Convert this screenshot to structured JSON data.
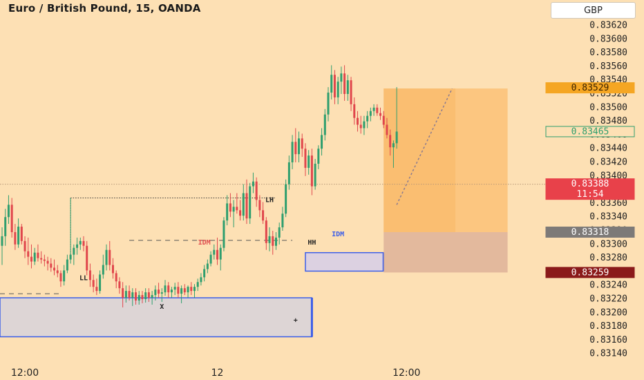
{
  "header": {
    "title": "Euro / British Pound, 15, OANDA",
    "currency_button": "GBP"
  },
  "chart_data": {
    "type": "candlestick",
    "y_ticks": [
      0.8314,
      0.8316,
      0.8318,
      0.832,
      0.8322,
      0.8324,
      0.8326,
      0.8328,
      0.833,
      0.8332,
      0.8334,
      0.8336,
      0.8338,
      0.834,
      0.8342,
      0.8344,
      0.8346,
      0.8348,
      0.835,
      0.8352,
      0.8354,
      0.8356,
      0.8358,
      0.836,
      0.8362
    ],
    "y_tick_labels": [
      "0.83140",
      "0.83160",
      "0.83180",
      "0.83200",
      "0.83220",
      "0.83240",
      "0.83260",
      "0.83280",
      "0.83300",
      "0.83320",
      "0.83340",
      "0.83360",
      "0.83380",
      "0.83400",
      "0.83420",
      "0.83440",
      "0.83460",
      "0.83480",
      "0.83500",
      "0.83520",
      "0.83540",
      "0.83560",
      "0.83580",
      "0.83600",
      "0.83620"
    ],
    "x_tick_labels": [
      {
        "label": "12:00",
        "bar": 7
      },
      {
        "label": "12",
        "bar": 66
      },
      {
        "label": "12:00",
        "bar": 124
      }
    ],
    "colors": {
      "up": "#2e9e6e",
      "down": "#e0464c"
    },
    "candles": [
      [
        0.83298,
        0.83325,
        0.8327,
        0.83312
      ],
      [
        0.83312,
        0.83352,
        0.83298,
        0.8334
      ],
      [
        0.8334,
        0.83372,
        0.8333,
        0.83358
      ],
      [
        0.83358,
        0.83368,
        0.8331,
        0.83318
      ],
      [
        0.83318,
        0.8333,
        0.83292,
        0.833
      ],
      [
        0.833,
        0.83338,
        0.83295,
        0.83326
      ],
      [
        0.83326,
        0.8333,
        0.833,
        0.83305
      ],
      [
        0.83305,
        0.83312,
        0.8328,
        0.8329
      ],
      [
        0.8329,
        0.8331,
        0.8327,
        0.83282
      ],
      [
        0.83282,
        0.833,
        0.83265,
        0.83275
      ],
      [
        0.83275,
        0.83295,
        0.8327,
        0.83288
      ],
      [
        0.83288,
        0.833,
        0.83275,
        0.8328
      ],
      [
        0.8328,
        0.8329,
        0.83272,
        0.83278
      ],
      [
        0.83278,
        0.83285,
        0.83268,
        0.83276
      ],
      [
        0.83276,
        0.83282,
        0.83262,
        0.83272
      ],
      [
        0.83272,
        0.8328,
        0.8326,
        0.83266
      ],
      [
        0.83266,
        0.83278,
        0.83255,
        0.83262
      ],
      [
        0.83262,
        0.8327,
        0.83252,
        0.83258
      ],
      [
        0.83258,
        0.83262,
        0.83238,
        0.83246
      ],
      [
        0.83246,
        0.8327,
        0.8324,
        0.83262
      ],
      [
        0.83262,
        0.83285,
        0.83258,
        0.83278
      ],
      [
        0.83278,
        0.83368,
        0.83272,
        0.83285
      ],
      [
        0.83285,
        0.833,
        0.8327,
        0.83295
      ],
      [
        0.83295,
        0.8331,
        0.83285,
        0.833
      ],
      [
        0.833,
        0.8331,
        0.83292,
        0.83305
      ],
      [
        0.83305,
        0.83312,
        0.8329,
        0.83298
      ],
      [
        0.83298,
        0.83305,
        0.83255,
        0.83262
      ],
      [
        0.83262,
        0.83272,
        0.83238,
        0.83248
      ],
      [
        0.83248,
        0.83256,
        0.8323,
        0.83238
      ],
      [
        0.83238,
        0.8325,
        0.83226,
        0.83232
      ],
      [
        0.83232,
        0.83262,
        0.83228,
        0.83256
      ],
      [
        0.83256,
        0.83285,
        0.8325,
        0.8327
      ],
      [
        0.8327,
        0.833,
        0.83262,
        0.83292
      ],
      [
        0.83292,
        0.83305,
        0.83262,
        0.8327
      ],
      [
        0.8327,
        0.8328,
        0.8325,
        0.83258
      ],
      [
        0.83258,
        0.83262,
        0.83236,
        0.83246
      ],
      [
        0.83246,
        0.83252,
        0.83228,
        0.83236
      ],
      [
        0.83236,
        0.83245,
        0.83208,
        0.83222
      ],
      [
        0.83222,
        0.8324,
        0.83215,
        0.83232
      ],
      [
        0.83232,
        0.8324,
        0.83218,
        0.83222
      ],
      [
        0.83222,
        0.83236,
        0.8321,
        0.8323
      ],
      [
        0.8323,
        0.83236,
        0.83212,
        0.83218
      ],
      [
        0.83218,
        0.83232,
        0.83212,
        0.83226
      ],
      [
        0.83226,
        0.83232,
        0.83214,
        0.8322
      ],
      [
        0.8322,
        0.83236,
        0.83215,
        0.8323
      ],
      [
        0.8323,
        0.83236,
        0.83216,
        0.83222
      ],
      [
        0.83222,
        0.83232,
        0.83212,
        0.83226
      ],
      [
        0.83226,
        0.8324,
        0.83218,
        0.83234
      ],
      [
        0.83234,
        0.83244,
        0.83222,
        0.83228
      ],
      [
        0.83228,
        0.83236,
        0.83216,
        0.8323
      ],
      [
        0.8323,
        0.83248,
        0.83225,
        0.8324
      ],
      [
        0.8324,
        0.83245,
        0.83222,
        0.8323
      ],
      [
        0.8323,
        0.83238,
        0.83222,
        0.83234
      ],
      [
        0.83234,
        0.83244,
        0.83226,
        0.83238
      ],
      [
        0.83238,
        0.83245,
        0.83222,
        0.83228
      ],
      [
        0.83228,
        0.8324,
        0.83214,
        0.83236
      ],
      [
        0.83236,
        0.83242,
        0.83226,
        0.8323
      ],
      [
        0.8323,
        0.8324,
        0.83222,
        0.83238
      ],
      [
        0.83238,
        0.83245,
        0.83226,
        0.83232
      ],
      [
        0.83232,
        0.83242,
        0.83222,
        0.83238
      ],
      [
        0.83238,
        0.8325,
        0.83232,
        0.83245
      ],
      [
        0.83245,
        0.83258,
        0.8324,
        0.83252
      ],
      [
        0.83252,
        0.8327,
        0.83246,
        0.83264
      ],
      [
        0.83264,
        0.83278,
        0.83258,
        0.83272
      ],
      [
        0.83272,
        0.8329,
        0.83268,
        0.83285
      ],
      [
        0.83285,
        0.833,
        0.83278,
        0.83292
      ],
      [
        0.83292,
        0.8331,
        0.8327,
        0.83278
      ],
      [
        0.83278,
        0.833,
        0.83262,
        0.83295
      ],
      [
        0.83295,
        0.8334,
        0.8329,
        0.83335
      ],
      [
        0.83335,
        0.83372,
        0.83328,
        0.8336
      ],
      [
        0.8336,
        0.83375,
        0.8334,
        0.83348
      ],
      [
        0.83348,
        0.83365,
        0.83325,
        0.83355
      ],
      [
        0.83355,
        0.83375,
        0.83345,
        0.8335
      ],
      [
        0.8335,
        0.83365,
        0.83335,
        0.83342
      ],
      [
        0.83342,
        0.83388,
        0.83335,
        0.83375
      ],
      [
        0.83375,
        0.83395,
        0.8333,
        0.83338
      ],
      [
        0.83338,
        0.8339,
        0.8333,
        0.83385
      ],
      [
        0.83385,
        0.83405,
        0.83375,
        0.83392
      ],
      [
        0.83392,
        0.83398,
        0.83355,
        0.83365
      ],
      [
        0.83365,
        0.83372,
        0.8334,
        0.8335
      ],
      [
        0.8335,
        0.83362,
        0.8333,
        0.83335
      ],
      [
        0.83335,
        0.8334,
        0.83292,
        0.83302
      ],
      [
        0.83302,
        0.83325,
        0.8329,
        0.83312
      ],
      [
        0.83312,
        0.8332,
        0.83285,
        0.83298
      ],
      [
        0.83298,
        0.83318,
        0.83292,
        0.8331
      ],
      [
        0.8331,
        0.83332,
        0.833,
        0.83325
      ],
      [
        0.83325,
        0.83355,
        0.8332,
        0.83345
      ],
      [
        0.83345,
        0.83395,
        0.8334,
        0.83388
      ],
      [
        0.83388,
        0.8343,
        0.8338,
        0.8342
      ],
      [
        0.8342,
        0.8346,
        0.8341,
        0.8345
      ],
      [
        0.8345,
        0.8347,
        0.8342,
        0.83432
      ],
      [
        0.83432,
        0.83465,
        0.8342,
        0.83455
      ],
      [
        0.83455,
        0.83462,
        0.83428,
        0.8344
      ],
      [
        0.8344,
        0.83448,
        0.834,
        0.83412
      ],
      [
        0.83412,
        0.83438,
        0.83402,
        0.8343
      ],
      [
        0.8343,
        0.8344,
        0.83372,
        0.83385
      ],
      [
        0.83385,
        0.83425,
        0.8338,
        0.83418
      ],
      [
        0.83418,
        0.83445,
        0.8341,
        0.8344
      ],
      [
        0.8344,
        0.8347,
        0.8343,
        0.8346
      ],
      [
        0.8346,
        0.83498,
        0.83452,
        0.8349
      ],
      [
        0.8349,
        0.8353,
        0.8348,
        0.83522
      ],
      [
        0.83522,
        0.83562,
        0.83512,
        0.83548
      ],
      [
        0.83548,
        0.83555,
        0.83505,
        0.83515
      ],
      [
        0.83515,
        0.83545,
        0.83505,
        0.83538
      ],
      [
        0.83538,
        0.8356,
        0.8352,
        0.8355
      ],
      [
        0.8355,
        0.83562,
        0.8351,
        0.8352
      ],
      [
        0.8352,
        0.83548,
        0.8351,
        0.8354
      ],
      [
        0.8354,
        0.83545,
        0.83495,
        0.83505
      ],
      [
        0.83505,
        0.83515,
        0.83475,
        0.83485
      ],
      [
        0.83485,
        0.83495,
        0.83465,
        0.83475
      ],
      [
        0.83475,
        0.83488,
        0.83462,
        0.8347
      ],
      [
        0.8347,
        0.83488,
        0.8346,
        0.8348
      ],
      [
        0.8348,
        0.83495,
        0.8347,
        0.83488
      ],
      [
        0.83488,
        0.835,
        0.8348,
        0.83495
      ],
      [
        0.83495,
        0.83505,
        0.83488,
        0.835
      ],
      [
        0.835,
        0.83505,
        0.83488,
        0.83492
      ],
      [
        0.83492,
        0.835,
        0.83482,
        0.83488
      ],
      [
        0.83488,
        0.83495,
        0.8347,
        0.83475
      ],
      [
        0.83475,
        0.83485,
        0.83455,
        0.8346
      ],
      [
        0.8346,
        0.83468,
        0.8343,
        0.83442
      ],
      [
        0.83442,
        0.83452,
        0.83412,
        0.83448
      ],
      [
        0.83448,
        0.8353,
        0.8344,
        0.83465
      ]
    ],
    "horizontal_levels": [
      {
        "name": "LH",
        "price": 0.83368,
        "from_bar": 21,
        "to_bar": 84,
        "style": "dotted",
        "color": "#333333"
      },
      {
        "name": "IDM",
        "price": 0.83306,
        "from_bar": 39,
        "to_bar": 89,
        "style": "dashed",
        "color": "#555555"
      },
      {
        "name": "upper-left-dashed",
        "price": 0.83228,
        "from_bar": 0,
        "to_bar": 18,
        "style": "dashed",
        "color": "#555555"
      },
      {
        "name": "current-price-line",
        "price": 0.83388,
        "from_bar": 0,
        "to_bar": 171,
        "style": "dotted",
        "color": "#b89878"
      }
    ],
    "zones": [
      {
        "name": "demand-zone-lower",
        "bar_from": 0,
        "bar_to": 95,
        "price_top": 0.83222,
        "price_bottom": 0.83165,
        "fill": "#d9d4d8",
        "border": "#3c5ee8"
      },
      {
        "name": "demand-zone-mid",
        "bar_from": 93,
        "bar_to": 117,
        "price_top": 0.83288,
        "price_bottom": 0.83261,
        "fill": "#d8cfe6",
        "border": "#3c5ee8"
      },
      {
        "name": "long-position-profit",
        "bar_from": 117,
        "bar_to": 155,
        "price_top": 0.83528,
        "price_bottom": 0.83318,
        "fill": "#fcc37a",
        "border": "none"
      },
      {
        "name": "long-position-loss",
        "bar_from": 117,
        "bar_to": 155,
        "price_top": 0.83318,
        "price_bottom": 0.83259,
        "fill": "#e0b59a",
        "border": "none"
      }
    ],
    "profit_target_inner_to_bar": 139,
    "trend_line": {
      "from_bar": 121,
      "from_price": 0.83358,
      "to_bar": 138,
      "to_price": 0.83528
    },
    "annotations": [
      {
        "text": "LH",
        "bar": 82,
        "price": 0.83365,
        "color": "#222222"
      },
      {
        "text": "IDM",
        "bar": 62,
        "price": 0.83303,
        "color": "#e05050"
      },
      {
        "text": "HH",
        "bar": 95,
        "price": 0.83303,
        "color": "#222222"
      },
      {
        "text": "LL",
        "bar": 25,
        "price": 0.83251,
        "color": "#222222"
      },
      {
        "text": "X",
        "bar": 49,
        "price": 0.83209,
        "color": "#222222"
      },
      {
        "text": "IDM",
        "bar": 103,
        "price": 0.83315,
        "color": "#3c5ee8"
      },
      {
        "text": "+",
        "bar": 90,
        "price": 0.83189,
        "color": "#222222"
      }
    ],
    "price_tags": [
      {
        "name": "take-profit-tag",
        "label": "0.83529",
        "price": 0.83529,
        "bg": "#f5a623",
        "fg": "#3a2200",
        "border": "#f5a623"
      },
      {
        "name": "last-price-tag",
        "label": "0.83465",
        "price": 0.83465,
        "bg": "#fde0b4",
        "fg": "#2e9e6e",
        "border": "#2e9e6e"
      },
      {
        "name": "current-price-tag",
        "label": "0.83388",
        "sublabel": "11:54",
        "price": 0.83388,
        "bg": "#e8414a",
        "fg": "#ffffff",
        "border": "#e8414a"
      },
      {
        "name": "entry-tag",
        "label": "0.83318",
        "price": 0.83318,
        "bg": "#7d7a78",
        "fg": "#ffffff",
        "border": "#7d7a78"
      },
      {
        "name": "stop-loss-tag",
        "label": "0.83259",
        "price": 0.83259,
        "bg": "#8b1a1a",
        "fg": "#ffffff",
        "border": "#8b1a1a"
      }
    ]
  }
}
